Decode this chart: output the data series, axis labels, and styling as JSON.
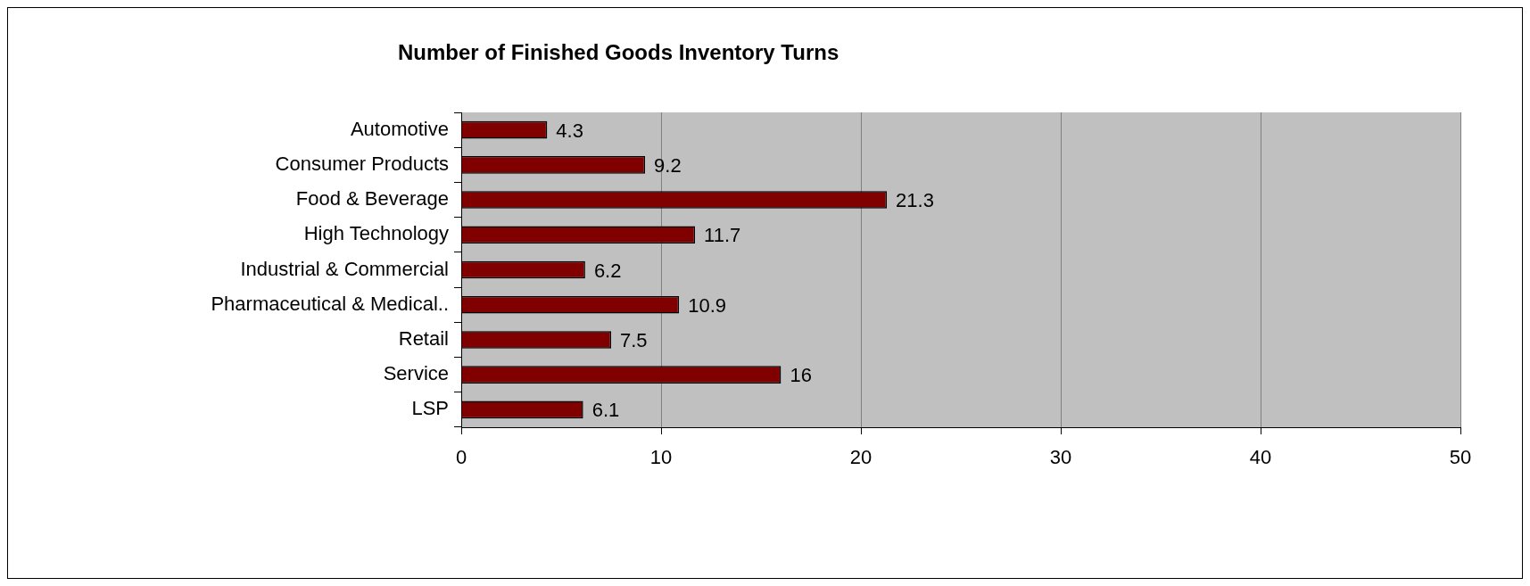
{
  "chart_data": {
    "type": "bar",
    "orientation": "horizontal",
    "title": "Number of Finished Goods Inventory Turns",
    "categories": [
      "Automotive",
      "Consumer Products",
      "Food & Beverage",
      "High Technology",
      "Industrial & Commercial",
      "Pharmaceutical & Medical..",
      "Retail",
      "Service",
      "LSP"
    ],
    "values": [
      4.3,
      9.2,
      21.3,
      11.7,
      6.2,
      10.9,
      7.5,
      16,
      6.1
    ],
    "color": "#800000",
    "xlim": [
      0,
      50
    ],
    "xticks": [
      0,
      10,
      20,
      30,
      40,
      50
    ],
    "grid": "x",
    "legend": false,
    "data_labels": true
  }
}
